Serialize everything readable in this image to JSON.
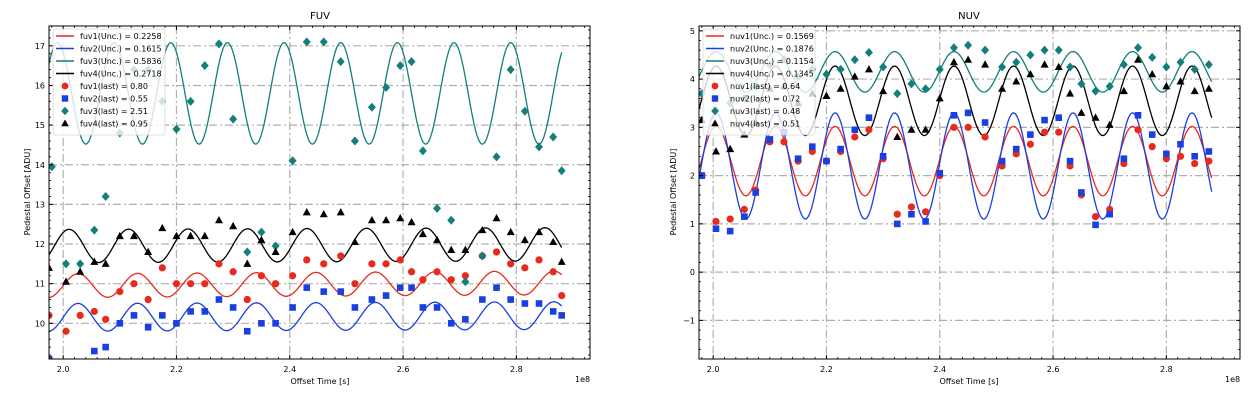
{
  "chart_data": [
    {
      "type": "scatter",
      "title": "FUV",
      "xlabel": "Offset Time [s]",
      "ylabel": "Pedestal Offset [ADU]",
      "x_offset_text": "1e8",
      "xlim": [
        1.975,
        2.93
      ],
      "ylim": [
        9.1,
        17.5
      ],
      "xticks": [
        2.0,
        2.2,
        2.4,
        2.6,
        2.8
      ],
      "xtick_labels": [
        "2.0",
        "2.2",
        "2.4",
        "2.6",
        "2.8"
      ],
      "yticks": [
        10,
        11,
        12,
        13,
        14,
        15,
        16,
        17
      ],
      "ytick_labels": [
        "10",
        "11",
        "12",
        "13",
        "14",
        "15",
        "16",
        "17"
      ],
      "grid": true,
      "legend_position": "top-left",
      "series": [
        {
          "name": "fuv1(Unc.) = 0.2258",
          "kind": "line",
          "color": "#e8291c",
          "base": 10.95,
          "slope": 0.08,
          "amp": 0.3,
          "period": 0.105,
          "phase": 0.0,
          "x_start": 1.975,
          "x_end": 2.88
        },
        {
          "name": "fuv2(Unc.) = 0.1615",
          "kind": "line",
          "color": "#1a3fe0",
          "base": 10.15,
          "slope": 0.05,
          "amp": 0.35,
          "period": 0.105,
          "phase": 0.0,
          "x_start": 1.975,
          "x_end": 2.88
        },
        {
          "name": "fuv3(Unc.) = 0.5836",
          "kind": "line",
          "color": "#137f7a",
          "base": 15.8,
          "slope": 0.0,
          "amp": 1.28,
          "period": 0.1,
          "phase": 0.35,
          "x_start": 1.975,
          "x_end": 2.88
        },
        {
          "name": "fuv4(Unc.) = 0.2718",
          "kind": "line",
          "color": "#000000",
          "base": 11.95,
          "slope": 0.05,
          "amp": 0.42,
          "period": 0.105,
          "phase": 0.15,
          "x_start": 1.975,
          "x_end": 2.88
        },
        {
          "name": "fuv1(last) = 0.80",
          "kind": "points",
          "marker": "circle",
          "color": "#e8291c",
          "x": [
            1.975,
            2.005,
            2.03,
            2.055,
            2.075,
            2.1,
            2.125,
            2.15,
            2.175,
            2.2,
            2.225,
            2.25,
            2.275,
            2.3,
            2.325,
            2.35,
            2.375,
            2.405,
            2.43,
            2.46,
            2.49,
            2.515,
            2.545,
            2.57,
            2.595,
            2.615,
            2.635,
            2.66,
            2.685,
            2.71,
            2.74,
            2.765,
            2.79,
            2.815,
            2.84,
            2.865,
            2.88
          ],
          "y": [
            10.2,
            9.8,
            10.2,
            10.3,
            10.1,
            10.8,
            11.0,
            10.6,
            11.4,
            11.0,
            11.0,
            11.0,
            11.5,
            11.3,
            10.6,
            11.2,
            11.0,
            11.2,
            11.6,
            11.5,
            11.7,
            11.0,
            11.5,
            11.5,
            11.6,
            11.3,
            11.1,
            11.3,
            11.1,
            11.2,
            11.7,
            11.8,
            11.5,
            11.4,
            11.6,
            11.3,
            10.7
          ]
        },
        {
          "name": "fuv2(last) = 0.55",
          "kind": "points",
          "marker": "square",
          "color": "#1a3fe0",
          "x": [
            1.975,
            2.005,
            2.03,
            2.055,
            2.075,
            2.1,
            2.125,
            2.15,
            2.175,
            2.2,
            2.225,
            2.25,
            2.275,
            2.3,
            2.325,
            2.35,
            2.375,
            2.405,
            2.43,
            2.46,
            2.49,
            2.515,
            2.545,
            2.57,
            2.595,
            2.615,
            2.635,
            2.66,
            2.685,
            2.71,
            2.74,
            2.765,
            2.79,
            2.815,
            2.84,
            2.865,
            2.88
          ],
          "y": [
            9.1,
            8.9,
            8.7,
            9.3,
            9.4,
            10.0,
            10.2,
            9.9,
            10.2,
            10.0,
            10.3,
            10.3,
            10.6,
            10.4,
            9.8,
            10.0,
            10.0,
            10.4,
            10.9,
            10.8,
            10.8,
            10.4,
            10.6,
            10.7,
            10.9,
            10.9,
            10.4,
            10.4,
            10.0,
            10.1,
            10.6,
            10.9,
            10.6,
            10.5,
            10.5,
            10.3,
            10.2
          ]
        },
        {
          "name": "fuv3(last) = 2.51",
          "kind": "points",
          "marker": "diamond",
          "color": "#137f7a",
          "x": [
            1.98,
            2.005,
            2.03,
            2.055,
            2.075,
            2.1,
            2.125,
            2.15,
            2.175,
            2.2,
            2.225,
            2.25,
            2.275,
            2.3,
            2.325,
            2.35,
            2.375,
            2.405,
            2.43,
            2.46,
            2.49,
            2.515,
            2.545,
            2.57,
            2.595,
            2.615,
            2.635,
            2.66,
            2.685,
            2.71,
            2.74,
            2.765,
            2.79,
            2.815,
            2.84,
            2.865,
            2.88
          ],
          "y": [
            13.95,
            11.5,
            11.5,
            12.35,
            13.2,
            14.8,
            16.4,
            16.4,
            15.6,
            14.9,
            15.6,
            16.5,
            17.05,
            15.15,
            11.8,
            12.3,
            11.95,
            14.1,
            17.1,
            17.1,
            16.6,
            14.6,
            15.45,
            15.95,
            16.5,
            16.6,
            14.35,
            12.9,
            12.6,
            11.05,
            11.7,
            14.2,
            16.4,
            15.35,
            14.45,
            14.7,
            13.85
          ]
        },
        {
          "name": "fuv4(last) = 0.95",
          "kind": "points",
          "marker": "triangle",
          "color": "#000000",
          "x": [
            1.975,
            2.005,
            2.03,
            2.055,
            2.075,
            2.1,
            2.125,
            2.15,
            2.175,
            2.2,
            2.225,
            2.25,
            2.275,
            2.3,
            2.325,
            2.35,
            2.375,
            2.405,
            2.43,
            2.46,
            2.49,
            2.515,
            2.545,
            2.57,
            2.595,
            2.615,
            2.635,
            2.66,
            2.685,
            2.71,
            2.74,
            2.765,
            2.79,
            2.815,
            2.84,
            2.865,
            2.88
          ],
          "y": [
            11.4,
            11.05,
            11.3,
            11.55,
            11.5,
            12.2,
            12.2,
            11.8,
            12.4,
            12.2,
            12.2,
            12.2,
            12.6,
            12.45,
            11.5,
            12.1,
            11.8,
            12.3,
            12.8,
            12.75,
            12.8,
            12.05,
            12.6,
            12.6,
            12.65,
            12.55,
            12.25,
            12.1,
            11.85,
            11.85,
            12.35,
            12.65,
            12.3,
            12.1,
            12.3,
            12.05,
            11.55
          ]
        }
      ]
    },
    {
      "type": "scatter",
      "title": "NUV",
      "xlabel": "Offset Time [s]",
      "ylabel": "Pedestal Offset [ADU]",
      "x_offset_text": "1e8",
      "xlim": [
        1.975,
        2.93
      ],
      "ylim": [
        -1.8,
        5.1
      ],
      "xticks": [
        2.0,
        2.2,
        2.4,
        2.6,
        2.8
      ],
      "xtick_labels": [
        "2.0",
        "2.2",
        "2.4",
        "2.6",
        "2.8"
      ],
      "yticks": [
        -1,
        0,
        1,
        2,
        3,
        4,
        5
      ],
      "ytick_labels": [
        "−1",
        "0",
        "1",
        "2",
        "3",
        "4",
        "5"
      ],
      "grid": true,
      "legend_position": "top-left",
      "series": [
        {
          "name": "nuv1(Unc.) = 0.1569",
          "kind": "line",
          "color": "#e8291c",
          "base": 2.3,
          "slope": 0.0,
          "amp": 0.72,
          "period": 0.105,
          "phase": 0.2,
          "x_start": 1.975,
          "x_end": 2.88
        },
        {
          "name": "nuv2(Unc.) = 0.1876",
          "kind": "line",
          "color": "#1a3fe0",
          "base": 2.2,
          "slope": 0.0,
          "amp": 1.1,
          "period": 0.105,
          "phase": 0.2,
          "x_start": 1.975,
          "x_end": 2.88
        },
        {
          "name": "nuv3(Unc.) = 0.1154",
          "kind": "line",
          "color": "#137f7a",
          "base": 4.15,
          "slope": 0.0,
          "amp": 0.42,
          "period": 0.105,
          "phase": 0.2,
          "x_start": 1.975,
          "x_end": 2.88
        },
        {
          "name": "nuv4(Unc.) = 0.1345",
          "kind": "line",
          "color": "#000000",
          "base": 3.55,
          "slope": 0.0,
          "amp": 0.72,
          "period": 0.105,
          "phase": 0.2,
          "x_start": 1.975,
          "x_end": 2.88
        },
        {
          "name": "nuv1(last) = 0.64",
          "kind": "points",
          "marker": "circle",
          "color": "#e8291c",
          "x": [
            1.98,
            2.005,
            2.03,
            2.055,
            2.075,
            2.1,
            2.125,
            2.15,
            2.175,
            2.2,
            2.225,
            2.25,
            2.275,
            2.3,
            2.325,
            2.35,
            2.375,
            2.4,
            2.425,
            2.45,
            2.48,
            2.51,
            2.535,
            2.56,
            2.585,
            2.61,
            2.63,
            2.65,
            2.675,
            2.7,
            2.725,
            2.75,
            2.775,
            2.8,
            2.825,
            2.85,
            2.875
          ],
          "y": [
            2.0,
            1.05,
            1.1,
            1.3,
            1.7,
            2.7,
            2.7,
            2.3,
            2.5,
            2.3,
            2.5,
            2.8,
            2.95,
            2.35,
            1.2,
            1.35,
            1.25,
            2.0,
            3.0,
            3.0,
            2.8,
            2.2,
            2.45,
            2.65,
            2.9,
            2.9,
            2.2,
            1.6,
            1.15,
            1.3,
            2.25,
            2.95,
            2.6,
            2.35,
            2.4,
            2.25,
            2.3
          ]
        },
        {
          "name": "nuv2(last) = 0.72",
          "kind": "points",
          "marker": "square",
          "color": "#1a3fe0",
          "x": [
            1.98,
            2.005,
            2.03,
            2.055,
            2.075,
            2.1,
            2.125,
            2.15,
            2.175,
            2.2,
            2.225,
            2.25,
            2.275,
            2.3,
            2.325,
            2.35,
            2.375,
            2.4,
            2.425,
            2.45,
            2.48,
            2.51,
            2.535,
            2.56,
            2.585,
            2.61,
            2.63,
            2.65,
            2.675,
            2.7,
            2.725,
            2.75,
            2.775,
            2.8,
            2.825,
            2.85,
            2.875
          ],
          "y": [
            2.0,
            0.9,
            0.85,
            1.15,
            1.65,
            2.75,
            2.9,
            2.35,
            2.6,
            2.3,
            2.55,
            2.95,
            3.2,
            2.4,
            1.0,
            1.2,
            1.05,
            2.05,
            3.25,
            3.3,
            3.1,
            2.3,
            2.55,
            2.85,
            3.15,
            3.2,
            2.3,
            1.65,
            0.98,
            1.2,
            2.35,
            3.25,
            2.85,
            2.45,
            2.65,
            2.4,
            2.5
          ]
        },
        {
          "name": "nuv3(last) = 0.48",
          "kind": "points",
          "marker": "diamond",
          "color": "#137f7a",
          "x": [
            1.98,
            2.005,
            2.03,
            2.055,
            2.075,
            2.1,
            2.125,
            2.15,
            2.175,
            2.2,
            2.225,
            2.25,
            2.275,
            2.3,
            2.325,
            2.35,
            2.375,
            2.4,
            2.425,
            2.45,
            2.48,
            2.51,
            2.535,
            2.56,
            2.585,
            2.61,
            2.63,
            2.65,
            2.675,
            2.7,
            2.725,
            2.75,
            2.775,
            2.8,
            2.825,
            2.85,
            2.875
          ],
          "y": [
            3.7,
            3.35,
            3.5,
            3.6,
            3.85,
            4.3,
            4.4,
            4.05,
            4.2,
            4.1,
            4.2,
            4.4,
            4.55,
            4.25,
            3.7,
            3.9,
            3.8,
            4.2,
            4.65,
            4.7,
            4.6,
            4.25,
            4.35,
            4.5,
            4.6,
            4.6,
            4.25,
            3.9,
            3.75,
            3.85,
            4.3,
            4.65,
            4.45,
            4.25,
            4.35,
            4.2,
            4.3
          ]
        },
        {
          "name": "nuv4(last) = 0.51",
          "kind": "points",
          "marker": "triangle",
          "color": "#000000",
          "x": [
            1.98,
            2.005,
            2.03,
            2.055,
            2.075,
            2.1,
            2.125,
            2.15,
            2.175,
            2.2,
            2.225,
            2.25,
            2.275,
            2.3,
            2.325,
            2.35,
            2.375,
            2.4,
            2.425,
            2.45,
            2.48,
            2.51,
            2.535,
            2.56,
            2.585,
            2.61,
            2.63,
            2.65,
            2.675,
            2.7,
            2.725,
            2.75,
            2.775,
            2.8,
            2.825,
            2.85,
            2.875
          ],
          "y": [
            3.15,
            2.5,
            2.55,
            2.85,
            3.1,
            3.8,
            3.85,
            3.5,
            3.7,
            3.65,
            3.8,
            4.05,
            4.2,
            3.75,
            2.8,
            2.95,
            2.95,
            3.6,
            4.35,
            4.4,
            4.3,
            3.8,
            3.95,
            4.1,
            4.3,
            4.25,
            3.7,
            3.3,
            3.2,
            3.05,
            3.75,
            4.4,
            4.1,
            3.85,
            3.95,
            3.75,
            3.8
          ]
        }
      ]
    }
  ]
}
